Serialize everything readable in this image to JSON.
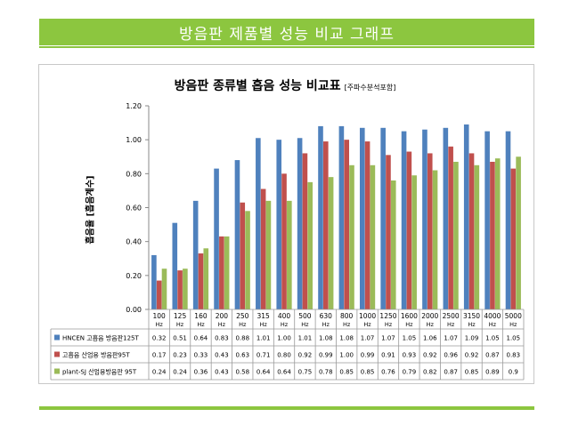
{
  "page": {
    "heading": "방음판 제품별 성능 비교 그래프"
  },
  "chart_data": {
    "type": "bar",
    "title": "방음판 종류별 흡음 성능 비교표",
    "subtitle": "[주파수분석포함]",
    "xlabel": "",
    "ylabel": "흡음율 [흡음계수]",
    "ylim": [
      0,
      1.2
    ],
    "yticks": [
      "0.00",
      "0.20",
      "0.40",
      "0.60",
      "0.80",
      "1.00",
      "1.20"
    ],
    "grid": false,
    "legend_placement": "table-below",
    "categories": [
      "100",
      "125",
      "160",
      "200",
      "250",
      "315",
      "400",
      "500",
      "630",
      "800",
      "1000",
      "1250",
      "1600",
      "2000",
      "2500",
      "3150",
      "4000",
      "5000"
    ],
    "category_unit": "Hz",
    "series": [
      {
        "name": "HNCEN 고흡음 방음판125T",
        "color": "#4f81bd",
        "values": [
          0.32,
          0.51,
          0.64,
          0.83,
          0.88,
          1.01,
          1.0,
          1.01,
          1.08,
          1.08,
          1.07,
          1.07,
          1.05,
          1.06,
          1.07,
          1.09,
          1.05,
          1.05
        ],
        "labels": [
          "0.32",
          "0.51",
          "0.64",
          "0.83",
          "0.88",
          "1.01",
          "1.00",
          "1.01",
          "1.08",
          "1.08",
          "1.07",
          "1.07",
          "1.05",
          "1.06",
          "1.07",
          "1.09",
          "1.05",
          "1.05"
        ]
      },
      {
        "name": "고흡음 산업용 방음판95T",
        "color": "#c0504d",
        "values": [
          0.17,
          0.23,
          0.33,
          0.43,
          0.63,
          0.71,
          0.8,
          0.92,
          0.99,
          1.0,
          0.99,
          0.91,
          0.93,
          0.92,
          0.96,
          0.92,
          0.87,
          0.83
        ],
        "labels": [
          "0.17",
          "0.23",
          "0.33",
          "0.43",
          "0.63",
          "0.71",
          "0.80",
          "0.92",
          "0.99",
          "1.00",
          "0.99",
          "0.91",
          "0.93",
          "0.92",
          "0.96",
          "0.92",
          "0.87",
          "0.83"
        ]
      },
      {
        "name": "plant-SJ 산업용방음판 95T",
        "color": "#9bbb59",
        "values": [
          0.24,
          0.24,
          0.36,
          0.43,
          0.58,
          0.64,
          0.64,
          0.75,
          0.78,
          0.85,
          0.85,
          0.76,
          0.79,
          0.82,
          0.87,
          0.85,
          0.89,
          0.9
        ],
        "labels": [
          "0.24",
          "0.24",
          "0.36",
          "0.43",
          "0.58",
          "0.64",
          "0.64",
          "0.75",
          "0.78",
          "0.85",
          "0.85",
          "0.76",
          "0.79",
          "0.82",
          "0.87",
          "0.85",
          "0.89",
          "0.9"
        ]
      }
    ]
  }
}
